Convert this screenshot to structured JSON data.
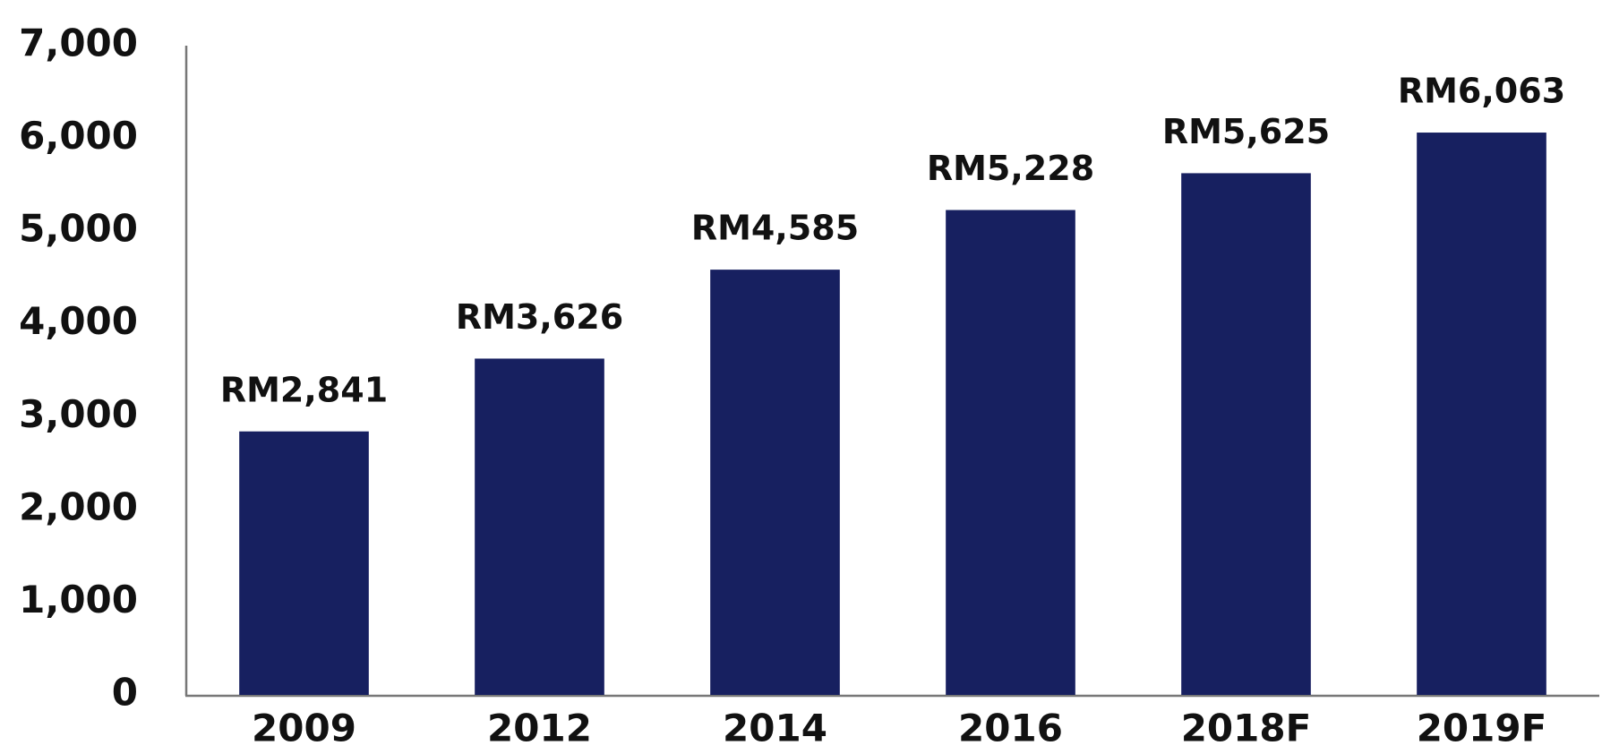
{
  "chart_data": {
    "type": "bar",
    "categories": [
      "2009",
      "2012",
      "2014",
      "2016",
      "2018F",
      "2019F"
    ],
    "values": [
      2841,
      3626,
      4585,
      5228,
      5625,
      6063
    ],
    "value_labels": [
      "RM2,841",
      "RM3,626",
      "RM4,585",
      "RM5,228",
      "RM5,625",
      "RM6,063"
    ],
    "color": "#172060",
    "ylim": [
      0,
      7000
    ],
    "yticks": [
      0,
      {
        "value": 1000,
        "label": "1,000"
      },
      {
        "value": 2000,
        "label": "2,000"
      },
      {
        "value": 3000,
        "label": "3,000"
      },
      {
        "value": 4000,
        "label": "4,000"
      },
      {
        "value": 5000,
        "label": "5,000"
      },
      {
        "value": 6000,
        "label": "6,000"
      },
      {
        "value": 7000,
        "label": "7,000"
      }
    ],
    "grid": false
  }
}
